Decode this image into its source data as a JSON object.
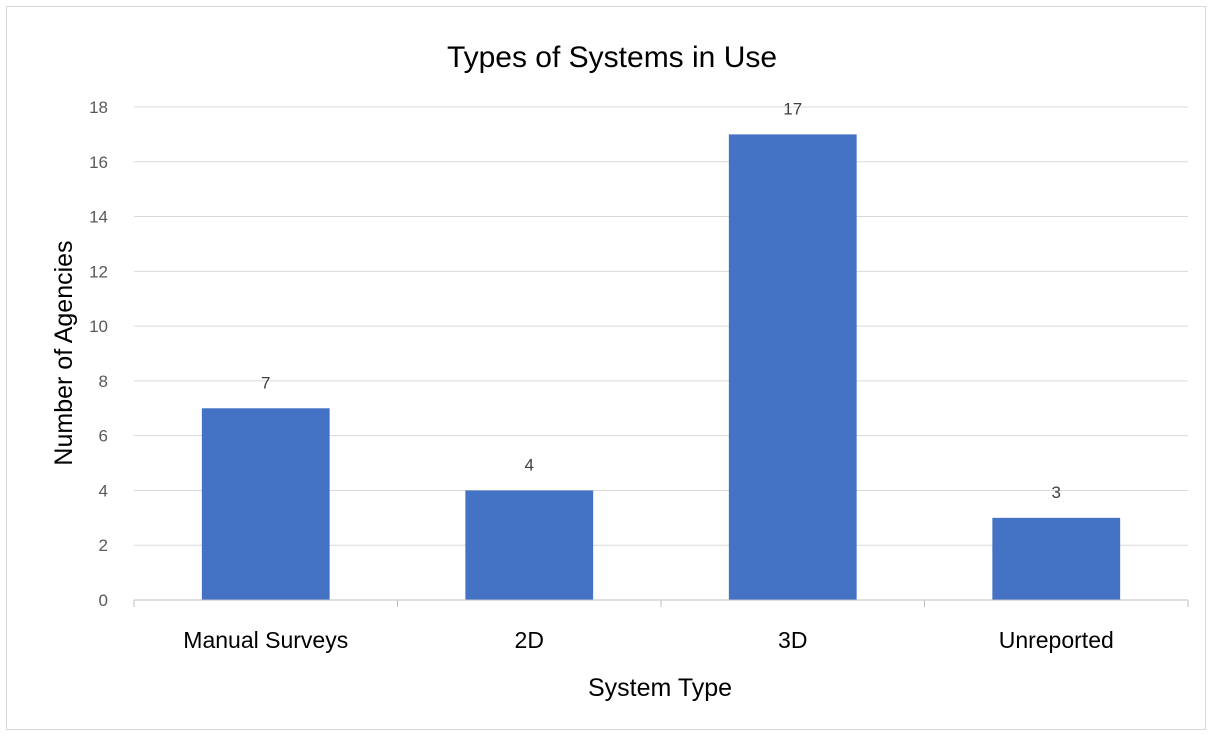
{
  "chart_data": {
    "type": "bar",
    "title": "Types of Systems in Use",
    "xlabel": "System Type",
    "ylabel": "Number of Agencies",
    "categories": [
      "Manual Surveys",
      "2D",
      "3D",
      "Unreported"
    ],
    "values": [
      7,
      4,
      17,
      3
    ],
    "data_labels": [
      "7",
      "4",
      "17",
      "3"
    ],
    "ylim": [
      0,
      18
    ],
    "yticks": [
      0,
      2,
      4,
      6,
      8,
      10,
      12,
      14,
      16,
      18
    ],
    "grid": true,
    "legend": "none",
    "colors": {
      "bar": "#4472C4",
      "grid": "#d9d9d9",
      "axis": "#bfbfbf"
    }
  }
}
